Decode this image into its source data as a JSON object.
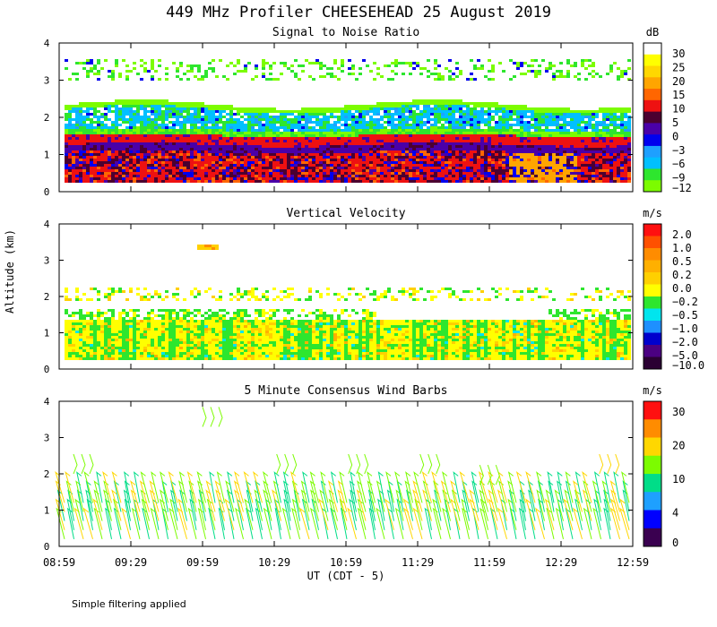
{
  "title": "449 MHz Profiler CHEESEHEAD 25 August 2019",
  "ylabel": "Altitude (km)",
  "xlabel": "UT  (CDT - 5)",
  "footnote": "Simple filtering applied",
  "x_ticks": [
    "08:59",
    "09:29",
    "09:59",
    "10:29",
    "10:59",
    "11:29",
    "11:59",
    "12:29",
    "12:59"
  ],
  "y_ticks": [
    "0",
    "1",
    "2",
    "3",
    "4"
  ],
  "colors": {
    "snr": [
      "#7cfc00",
      "#2ee62e",
      "#00c0ff",
      "#1ea0ff",
      "#0000ee",
      "#4a00a8",
      "#4b0030",
      "#ee1111",
      "#ff6600",
      "#ffa500",
      "#ffd700",
      "#ffff00",
      "#ffffff"
    ],
    "vv": [
      "#2b0033",
      "#4b0082",
      "#0000cd",
      "#1e90ff",
      "#00e5ee",
      "#2ee62e",
      "#ffff00",
      "#ffd000",
      "#ffb000",
      "#ff8c00",
      "#ff5000",
      "#ff1010"
    ],
    "wind": [
      "#3a0050",
      "#0000ff",
      "#1ea0ff",
      "#00dd88",
      "#7cfc00",
      "#ffd700",
      "#ff8c00",
      "#ff1010"
    ]
  },
  "chart_data": [
    {
      "type": "heatmap",
      "title": "Signal to Noise Ratio",
      "ylim": [
        0,
        4
      ],
      "colorbar": {
        "unit": "dB",
        "labels": [
          "30",
          "25",
          "20",
          "15",
          "10",
          "5",
          "0",
          "−3",
          "−6",
          "−9",
          "−12"
        ]
      },
      "layers": [
        {
          "range_km": [
            0.3,
            1.1
          ],
          "value_db": 7,
          "note": "mixed 5-15 dB"
        },
        {
          "range_km": [
            1.1,
            1.3
          ],
          "value_db": 2
        },
        {
          "range_km": [
            1.3,
            1.6
          ],
          "value_db": 10
        },
        {
          "range_km": [
            1.6,
            2.3
          ],
          "value_db": -5
        },
        {
          "range_km": [
            3.1,
            3.6
          ],
          "value_db": -11,
          "note": "patchy"
        }
      ]
    },
    {
      "type": "heatmap",
      "title": "Vertical Velocity",
      "ylim": [
        0,
        4
      ],
      "colorbar": {
        "unit": "m/s",
        "labels": [
          "2.0",
          "1.0",
          "0.5",
          "0.2",
          "0.0",
          "−0.2",
          "−0.5",
          "−1.0",
          "−2.0",
          "−5.0",
          "−10.0"
        ]
      },
      "layers": [
        {
          "range_km": [
            0.3,
            1.4
          ],
          "value_ms": 0.0
        },
        {
          "range_km": [
            1.4,
            1.7
          ],
          "value_ms": -0.2
        },
        {
          "range_km": [
            1.9,
            2.3
          ],
          "value_ms": 0.0,
          "note": "patchy"
        },
        {
          "range_km": [
            3.3,
            3.5
          ],
          "value_ms": 0.2,
          "note": "near 09:59"
        }
      ]
    },
    {
      "type": "scatter",
      "title": "5 Minute Consensus Wind Barbs",
      "ylim": [
        0,
        4
      ],
      "colorbar": {
        "unit": "m/s",
        "labels": [
          "30",
          "20",
          "10",
          "4",
          "0"
        ]
      },
      "barb_levels_km": [
        0.2,
        0.45,
        0.7,
        0.95,
        1.2
      ],
      "upper_barbs": [
        {
          "time": "09:05",
          "alt_km": 2.0
        },
        {
          "time": "09:59",
          "alt_km": 3.3
        },
        {
          "time": "10:30",
          "alt_km": 2.0
        },
        {
          "time": "11:00",
          "alt_km": 2.0
        },
        {
          "time": "11:30",
          "alt_km": 2.0
        },
        {
          "time": "11:55",
          "alt_km": 1.7
        },
        {
          "time": "12:45",
          "alt_km": 2.0
        }
      ],
      "speed_ms_typical": 12
    }
  ]
}
